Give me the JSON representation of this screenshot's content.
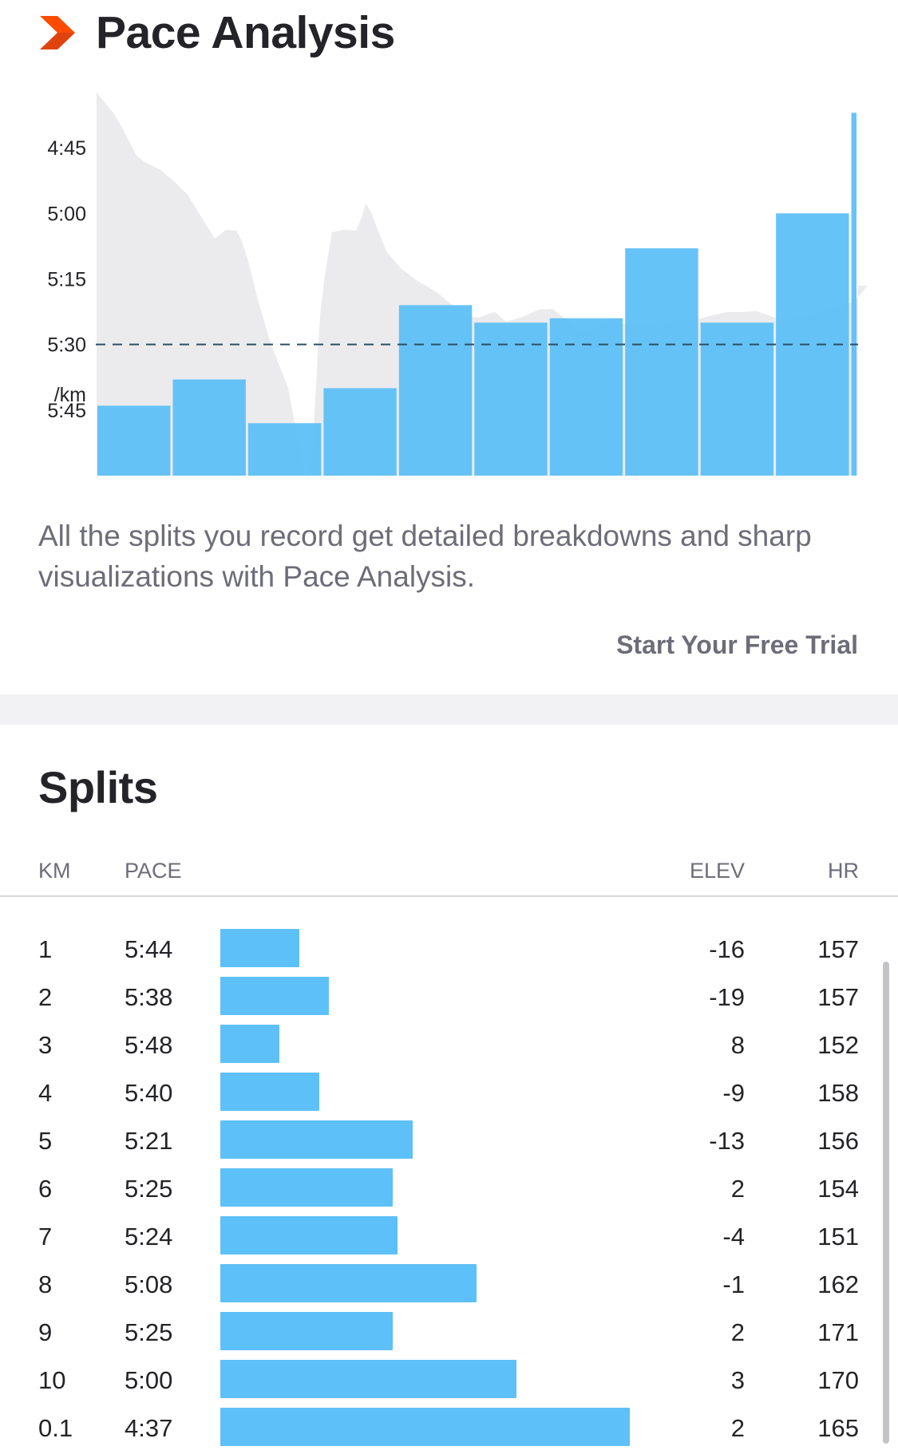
{
  "pace_analysis": {
    "title": "Pace Analysis",
    "logo_icon": "chevron-right-icon",
    "description": "All the splits you record get detailed breakdowns and sharp visualizations with Pace Analysis.",
    "cta_label": "Start Your Free Trial",
    "colors": {
      "bar": "#5ec0f8",
      "elevation": "#ebebed",
      "average_line": "#2d4f63",
      "logo": "#fc4c02"
    }
  },
  "chart_data": {
    "type": "bar",
    "y_ticks": [
      "4:45",
      "5:00",
      "5:15",
      "5:30",
      "5:45"
    ],
    "y_unit": "/km",
    "y_axis_inverted": true,
    "categories": [
      "1",
      "2",
      "3",
      "4",
      "5",
      "6",
      "7",
      "8",
      "9",
      "10",
      "0.1"
    ],
    "values_seconds_per_km": [
      344,
      338,
      348,
      340,
      321,
      325,
      324,
      308,
      325,
      300,
      277
    ],
    "average_pace": "5:30",
    "average_seconds_per_km": 330,
    "ylim_seconds_per_km": [
      270,
      360
    ],
    "grid": false,
    "elevation_profile": "background area"
  },
  "splits": {
    "title": "Splits",
    "headers": {
      "km": "KM",
      "pace": "PACE",
      "elev": "ELEV",
      "hr": "HR"
    },
    "rows": [
      {
        "km": "1",
        "pace": "5:44",
        "elev": "-16",
        "hr": "157",
        "pace_seconds": 344
      },
      {
        "km": "2",
        "pace": "5:38",
        "elev": "-19",
        "hr": "157",
        "pace_seconds": 338
      },
      {
        "km": "3",
        "pace": "5:48",
        "elev": "8",
        "hr": "152",
        "pace_seconds": 348
      },
      {
        "km": "4",
        "pace": "5:40",
        "elev": "-9",
        "hr": "158",
        "pace_seconds": 340
      },
      {
        "km": "5",
        "pace": "5:21",
        "elev": "-13",
        "hr": "156",
        "pace_seconds": 321
      },
      {
        "km": "6",
        "pace": "5:25",
        "elev": "2",
        "hr": "154",
        "pace_seconds": 325
      },
      {
        "km": "7",
        "pace": "5:24",
        "elev": "-4",
        "hr": "151",
        "pace_seconds": 324
      },
      {
        "km": "8",
        "pace": "5:08",
        "elev": "-1",
        "hr": "162",
        "pace_seconds": 308
      },
      {
        "km": "9",
        "pace": "5:25",
        "elev": "2",
        "hr": "171",
        "pace_seconds": 325
      },
      {
        "km": "10",
        "pace": "5:00",
        "elev": "3",
        "hr": "170",
        "pace_seconds": 300
      },
      {
        "km": "0.1",
        "pace": "4:37",
        "elev": "2",
        "hr": "165",
        "pace_seconds": 277
      }
    ]
  }
}
